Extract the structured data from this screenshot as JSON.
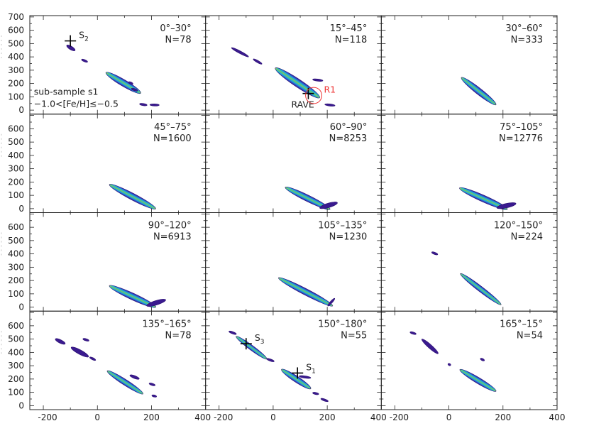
{
  "chart_data": {
    "type": "contour",
    "layout": {
      "rows": 4,
      "cols": 3
    },
    "xlim": [
      -250,
      400
    ],
    "ylim": [
      -30,
      710
    ],
    "x_ticks": [
      -200,
      0,
      200,
      400
    ],
    "x_tick_labels": [
      "-200",
      "0",
      "200",
      "400"
    ],
    "y_ticks": [
      0,
      100,
      200,
      300,
      400,
      500,
      600,
      700
    ],
    "y_tick_labels_top": [
      "0",
      "100",
      "200",
      "300",
      "400",
      "500",
      "600",
      "700"
    ],
    "y_tick_labels": [
      "0",
      "100",
      "200",
      "300",
      "400",
      "500",
      "600"
    ],
    "panels": [
      {
        "angle": "0°–30°",
        "n": "N=78"
      },
      {
        "angle": "15°–45°",
        "n": "N=118"
      },
      {
        "angle": "30°–60°",
        "n": "N=333"
      },
      {
        "angle": "45°–75°",
        "n": "N=1600"
      },
      {
        "angle": "60°–90°",
        "n": "N=8253"
      },
      {
        "angle": "75°–105°",
        "n": "N=12776"
      },
      {
        "angle": "90°–120°",
        "n": "N=6913"
      },
      {
        "angle": "105°–135°",
        "n": "N=1230"
      },
      {
        "angle": "120°–150°",
        "n": "N=224"
      },
      {
        "angle": "135°–165°",
        "n": "N=78"
      },
      {
        "angle": "150°–180°",
        "n": "N=55"
      },
      {
        "angle": "165°–15°",
        "n": "N=54"
      }
    ],
    "annotations": {
      "subsample_line1": "sub-sample s1",
      "subsample_line2": "−1.0<[Fe/H]≤−0.5",
      "markers": [
        {
          "panel": 0,
          "label": "S",
          "sub": "2",
          "x": -100,
          "y": 520
        },
        {
          "panel": 1,
          "label": "RAVE",
          "x": 130,
          "y": 125
        },
        {
          "panel": 10,
          "label": "S",
          "sub": "3",
          "x": -100,
          "y": 465
        },
        {
          "panel": 10,
          "label": "S",
          "sub": "1",
          "x": 90,
          "y": 245
        }
      ],
      "circle": {
        "panel": 1,
        "label": "R1",
        "x": 150,
        "y": 110,
        "r": 30
      }
    },
    "blobs": [
      [
        {
          "x1": -108,
          "y1": 480,
          "x2": -88,
          "y2": 455,
          "w": 22
        },
        {
          "x1": -55,
          "y1": 378,
          "x2": -40,
          "y2": 365,
          "w": 13
        },
        {
          "x1": 42,
          "y1": 270,
          "x2": 150,
          "y2": 140,
          "w": 42
        },
        {
          "x1": 118,
          "y1": 208,
          "x2": 128,
          "y2": 200,
          "w": 11
        },
        {
          "x1": 130,
          "y1": 160,
          "x2": 145,
          "y2": 148,
          "w": 12
        },
        {
          "x1": 160,
          "y1": 45,
          "x2": 180,
          "y2": 38,
          "w": 12
        },
        {
          "x1": 198,
          "y1": 40,
          "x2": 225,
          "y2": 38,
          "w": 9
        }
      ],
      [
        {
          "x1": -150,
          "y1": 465,
          "x2": -95,
          "y2": 405,
          "w": 16
        },
        {
          "x1": -70,
          "y1": 380,
          "x2": -45,
          "y2": 350,
          "w": 12
        },
        {
          "x1": 20,
          "y1": 300,
          "x2": 160,
          "y2": 110,
          "w": 50
        },
        {
          "x1": 150,
          "y1": 230,
          "x2": 180,
          "y2": 222,
          "w": 12
        },
        {
          "x1": 195,
          "y1": 42,
          "x2": 225,
          "y2": 35,
          "w": 9
        }
      ],
      [
        {
          "x1": 55,
          "y1": 230,
          "x2": 165,
          "y2": 55,
          "w": 40
        }
      ],
      [
        {
          "x1": 55,
          "y1": 170,
          "x2": 205,
          "y2": 10,
          "w": 42
        }
      ],
      [
        {
          "x1": 55,
          "y1": 150,
          "x2": 200,
          "y2": 5,
          "w": 40
        },
        {
          "x1": 180,
          "y1": 10,
          "x2": 230,
          "y2": 40,
          "w": 28
        }
      ],
      [
        {
          "x1": 50,
          "y1": 145,
          "x2": 205,
          "y2": 5,
          "w": 42
        },
        {
          "x1": 185,
          "y1": 10,
          "x2": 240,
          "y2": 35,
          "w": 28
        }
      ],
      [
        {
          "x1": 55,
          "y1": 150,
          "x2": 205,
          "y2": 10,
          "w": 42
        },
        {
          "x1": 190,
          "y1": 15,
          "x2": 245,
          "y2": 50,
          "w": 28
        }
      ],
      [
        {
          "x1": 30,
          "y1": 210,
          "x2": 210,
          "y2": 20,
          "w": 40
        },
        {
          "x1": 205,
          "y1": 15,
          "x2": 225,
          "y2": 60,
          "w": 12
        }
      ],
      [
        {
          "x1": -60,
          "y1": 410,
          "x2": -45,
          "y2": 398,
          "w": 12
        },
        {
          "x1": 50,
          "y1": 240,
          "x2": 185,
          "y2": 30,
          "w": 34
        }
      ],
      [
        {
          "x1": -150,
          "y1": 495,
          "x2": -125,
          "y2": 470,
          "w": 22
        },
        {
          "x1": -90,
          "y1": 430,
          "x2": -40,
          "y2": 375,
          "w": 28
        },
        {
          "x1": -25,
          "y1": 360,
          "x2": -10,
          "y2": 345,
          "w": 12
        },
        {
          "x1": -50,
          "y1": 500,
          "x2": -35,
          "y2": 490,
          "w": 10
        },
        {
          "x1": 45,
          "y1": 250,
          "x2": 160,
          "y2": 100,
          "w": 36
        },
        {
          "x1": 125,
          "y1": 225,
          "x2": 150,
          "y2": 205,
          "w": 18
        },
        {
          "x1": 195,
          "y1": 165,
          "x2": 210,
          "y2": 155,
          "w": 10
        },
        {
          "x1": 205,
          "y1": 75,
          "x2": 215,
          "y2": 70,
          "w": 8
        }
      ],
      [
        {
          "x1": -160,
          "y1": 555,
          "x2": -140,
          "y2": 540,
          "w": 14
        },
        {
          "x1": -130,
          "y1": 510,
          "x2": -30,
          "y2": 360,
          "w": 30
        },
        {
          "x1": -20,
          "y1": 350,
          "x2": 0,
          "y2": 335,
          "w": 12
        },
        {
          "x1": 40,
          "y1": 260,
          "x2": 130,
          "y2": 140,
          "w": 38
        },
        {
          "x1": 100,
          "y1": 220,
          "x2": 135,
          "y2": 210,
          "w": 14
        },
        {
          "x1": 150,
          "y1": 95,
          "x2": 165,
          "y2": 88,
          "w": 10
        },
        {
          "x1": 180,
          "y1": 50,
          "x2": 200,
          "y2": 35,
          "w": 12
        }
      ],
      [
        {
          "x1": -140,
          "y1": 550,
          "x2": -125,
          "y2": 540,
          "w": 10
        },
        {
          "x1": -95,
          "y1": 490,
          "x2": -45,
          "y2": 400,
          "w": 24
        },
        {
          "x1": 50,
          "y1": 260,
          "x2": 165,
          "y2": 120,
          "w": 38
        },
        {
          "x1": 120,
          "y1": 350,
          "x2": 128,
          "y2": 342,
          "w": 8
        },
        {
          "x1": 0,
          "y1": 310,
          "x2": 3,
          "y2": 307,
          "w": 5
        }
      ]
    ]
  }
}
